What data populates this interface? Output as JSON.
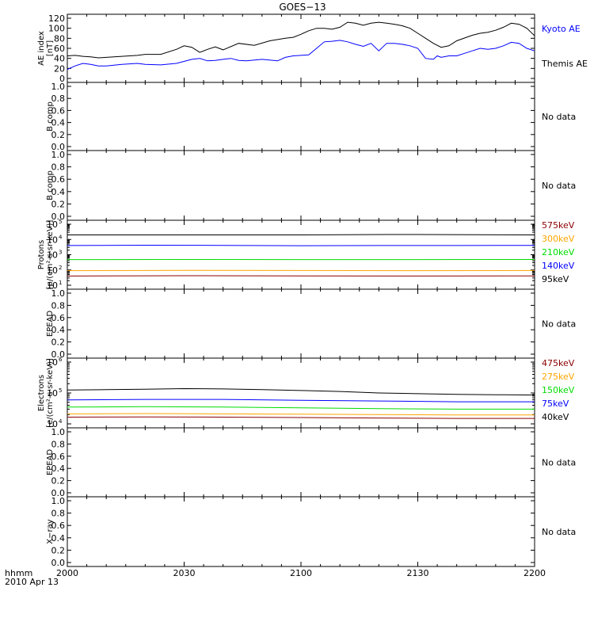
{
  "title": "GOES−13",
  "time_axis": {
    "label1": "hhmm",
    "label2": "2010 Apr 13",
    "ticks": [
      "2000",
      "2030",
      "2100",
      "2130",
      "2200"
    ],
    "range_minutes": [
      0,
      120
    ]
  },
  "colors": {
    "blue": "#0000ff",
    "black": "#000000",
    "red": "#8b0000",
    "orange": "#ffa500",
    "green": "#00dd00"
  },
  "chart_data": [
    {
      "type": "line",
      "panel": "ae",
      "ylabel": [
        "AE index",
        "[nT]"
      ],
      "ylim": [
        0,
        120
      ],
      "yticks": [
        "0",
        "20",
        "40",
        "60",
        "80",
        "100",
        "120"
      ],
      "yvals": [
        0,
        20,
        40,
        60,
        80,
        100,
        120
      ],
      "legend": [
        {
          "name": "Kyoto AE",
          "color": "#0000ff"
        },
        {
          "name": "Themis AE",
          "color": "#000000"
        }
      ],
      "series": [
        {
          "name": "Kyoto AE",
          "color": "#0000ff",
          "x": [
            0,
            2,
            4,
            6,
            8,
            10,
            14,
            18,
            20,
            24,
            28,
            32,
            34,
            36,
            38,
            40,
            42,
            44,
            46,
            50,
            54,
            56,
            58,
            62,
            64,
            66,
            68,
            70,
            72,
            74,
            76,
            78,
            80,
            82,
            84,
            86,
            88,
            90,
            92,
            94,
            95,
            96,
            98,
            100,
            102,
            104,
            106,
            108,
            110,
            112,
            114,
            116,
            118,
            120
          ],
          "y": [
            18,
            25,
            30,
            28,
            25,
            25,
            28,
            30,
            28,
            27,
            30,
            38,
            40,
            35,
            36,
            38,
            40,
            36,
            35,
            38,
            35,
            42,
            45,
            47,
            60,
            73,
            74,
            76,
            73,
            68,
            64,
            70,
            55,
            70,
            70,
            68,
            65,
            60,
            40,
            38,
            45,
            42,
            45,
            45,
            50,
            55,
            60,
            58,
            60,
            65,
            72,
            70,
            60,
            55
          ]
        },
        {
          "name": "Themis AE",
          "color": "#000000",
          "x": [
            0,
            2,
            4,
            6,
            8,
            10,
            14,
            18,
            20,
            24,
            28,
            30,
            32,
            34,
            36,
            38,
            40,
            44,
            48,
            52,
            56,
            58,
            60,
            62,
            64,
            66,
            68,
            70,
            72,
            74,
            76,
            78,
            80,
            82,
            84,
            86,
            88,
            90,
            92,
            94,
            96,
            98,
            100,
            104,
            106,
            108,
            110,
            112,
            114,
            116,
            118,
            120
          ],
          "y": [
            45,
            46,
            44,
            43,
            41,
            42,
            44,
            46,
            48,
            48,
            58,
            65,
            62,
            52,
            58,
            63,
            57,
            70,
            66,
            75,
            80,
            82,
            88,
            95,
            100,
            100,
            98,
            102,
            112,
            110,
            106,
            110,
            112,
            110,
            108,
            105,
            100,
            90,
            80,
            70,
            62,
            65,
            75,
            86,
            90,
            92,
            96,
            102,
            110,
            108,
            100,
            85
          ]
        }
      ]
    },
    {
      "type": "line",
      "panel": "b1",
      "ylabel": [
        "B comp"
      ],
      "ylim": [
        0,
        1
      ],
      "yticks": [
        "0.0",
        "0.2",
        "0.4",
        "0.6",
        "0.8",
        "1.0"
      ],
      "yvals": [
        0,
        0.2,
        0.4,
        0.6,
        0.8,
        1.0
      ],
      "status": "No data",
      "series": []
    },
    {
      "type": "line",
      "panel": "b2",
      "ylabel": [
        "B comp"
      ],
      "ylim": [
        0,
        1
      ],
      "yticks": [
        "0.0",
        "0.2",
        "0.4",
        "0.6",
        "0.8",
        "1.0"
      ],
      "yvals": [
        0,
        0.2,
        0.4,
        0.6,
        0.8,
        1.0
      ],
      "status": "No data",
      "series": []
    },
    {
      "type": "line",
      "panel": "protons",
      "scale": "log",
      "ylabel": [
        "Protons",
        "[p/(cm²-s-sr-keV)]"
      ],
      "ylim": [
        10,
        100000
      ],
      "yticks": [
        "10",
        "10",
        "10",
        "10",
        "10"
      ],
      "ytick_exp": [
        "1",
        "2",
        "3",
        "4",
        "5"
      ],
      "yvals": [
        10,
        100,
        1000,
        10000,
        100000
      ],
      "legend": [
        {
          "name": "575keV",
          "color": "#8b0000"
        },
        {
          "name": "300keV",
          "color": "#ffa500"
        },
        {
          "name": "210keV",
          "color": "#00dd00"
        },
        {
          "name": "140keV",
          "color": "#0000ff"
        },
        {
          "name": "95keV",
          "color": "#000000"
        }
      ],
      "series": [
        {
          "name": "95keV",
          "color": "#000000",
          "x": [
            0,
            40,
            60,
            82,
            90,
            120
          ],
          "y": [
            20000,
            20000,
            20000,
            21000,
            21000,
            20000
          ]
        },
        {
          "name": "140keV",
          "color": "#0000ff",
          "x": [
            0,
            20,
            40,
            60,
            80,
            100,
            120
          ],
          "y": [
            4000,
            4200,
            4100,
            3900,
            4000,
            4000,
            4100
          ]
        },
        {
          "name": "210keV",
          "color": "#00dd00",
          "x": [
            0,
            30,
            60,
            90,
            120
          ],
          "y": [
            480,
            490,
            480,
            480,
            490
          ]
        },
        {
          "name": "300keV",
          "color": "#ffa500",
          "x": [
            0,
            30,
            60,
            90,
            120
          ],
          "y": [
            90,
            95,
            92,
            90,
            92
          ]
        },
        {
          "name": "575keV",
          "color": "#8b0000",
          "x": [
            0,
            30,
            60,
            90,
            120
          ],
          "y": [
            40,
            42,
            41,
            40,
            41
          ]
        }
      ]
    },
    {
      "type": "line",
      "panel": "epead1",
      "ylabel": [
        "EPEAD"
      ],
      "ylim": [
        0,
        1
      ],
      "yticks": [
        "0.0",
        "0.2",
        "0.4",
        "0.6",
        "0.8",
        "1.0"
      ],
      "yvals": [
        0,
        0.2,
        0.4,
        0.6,
        0.8,
        1.0
      ],
      "status": "No data",
      "series": []
    },
    {
      "type": "line",
      "panel": "electrons",
      "scale": "log",
      "ylabel": [
        "Electrons",
        "[e/(cm²-s-sr-keV)]"
      ],
      "ylim": [
        10000,
        1000000
      ],
      "yticks": [
        "10",
        "10",
        "10"
      ],
      "ytick_exp": [
        "4",
        "5",
        "6"
      ],
      "yvals": [
        10000,
        100000,
        1000000
      ],
      "legend": [
        {
          "name": "475keV",
          "color": "#8b0000"
        },
        {
          "name": "275keV",
          "color": "#ffa500"
        },
        {
          "name": "150keV",
          "color": "#00dd00"
        },
        {
          "name": "75keV",
          "color": "#0000ff"
        },
        {
          "name": "40keV",
          "color": "#000000"
        }
      ],
      "series": [
        {
          "name": "40keV",
          "color": "#000000",
          "x": [
            0,
            10,
            20,
            30,
            40,
            50,
            60,
            70,
            80,
            90,
            100,
            110,
            120
          ],
          "y": [
            125000,
            128000,
            132000,
            138000,
            135000,
            128000,
            120000,
            112000,
            100000,
            95000,
            90000,
            88000,
            86000
          ]
        },
        {
          "name": "75keV",
          "color": "#0000ff",
          "x": [
            0,
            20,
            40,
            60,
            80,
            100,
            120
          ],
          "y": [
            60000,
            62000,
            62000,
            58000,
            55000,
            52000,
            52000
          ]
        },
        {
          "name": "150keV",
          "color": "#00dd00",
          "x": [
            0,
            20,
            40,
            60,
            80,
            100,
            120
          ],
          "y": [
            35000,
            36000,
            35000,
            33000,
            31000,
            30000,
            30000
          ]
        },
        {
          "name": "275keV",
          "color": "#ffa500",
          "x": [
            0,
            20,
            40,
            60,
            80,
            100,
            120
          ],
          "y": [
            21000,
            21500,
            21000,
            20500,
            20000,
            19500,
            19500
          ]
        },
        {
          "name": "475keV",
          "color": "#8b0000",
          "x": [
            0,
            20,
            40,
            60,
            80,
            100,
            120
          ],
          "y": [
            16500,
            16800,
            16500,
            16000,
            15500,
            15000,
            15000
          ]
        }
      ]
    },
    {
      "type": "line",
      "panel": "epead2",
      "ylabel": [
        "EPEAD"
      ],
      "ylim": [
        0,
        1
      ],
      "yticks": [
        "0.0",
        "0.2",
        "0.4",
        "0.6",
        "0.8",
        "1.0"
      ],
      "yvals": [
        0,
        0.2,
        0.4,
        0.6,
        0.8,
        1.0
      ],
      "status": "No data",
      "series": []
    },
    {
      "type": "line",
      "panel": "xray",
      "ylabel": [
        "X−ray"
      ],
      "ylim": [
        0,
        1
      ],
      "yticks": [
        "0.0",
        "0.2",
        "0.4",
        "0.6",
        "0.8",
        "1.0"
      ],
      "yvals": [
        0,
        0.2,
        0.4,
        0.6,
        0.8,
        1.0
      ],
      "status": "No data",
      "series": []
    }
  ]
}
